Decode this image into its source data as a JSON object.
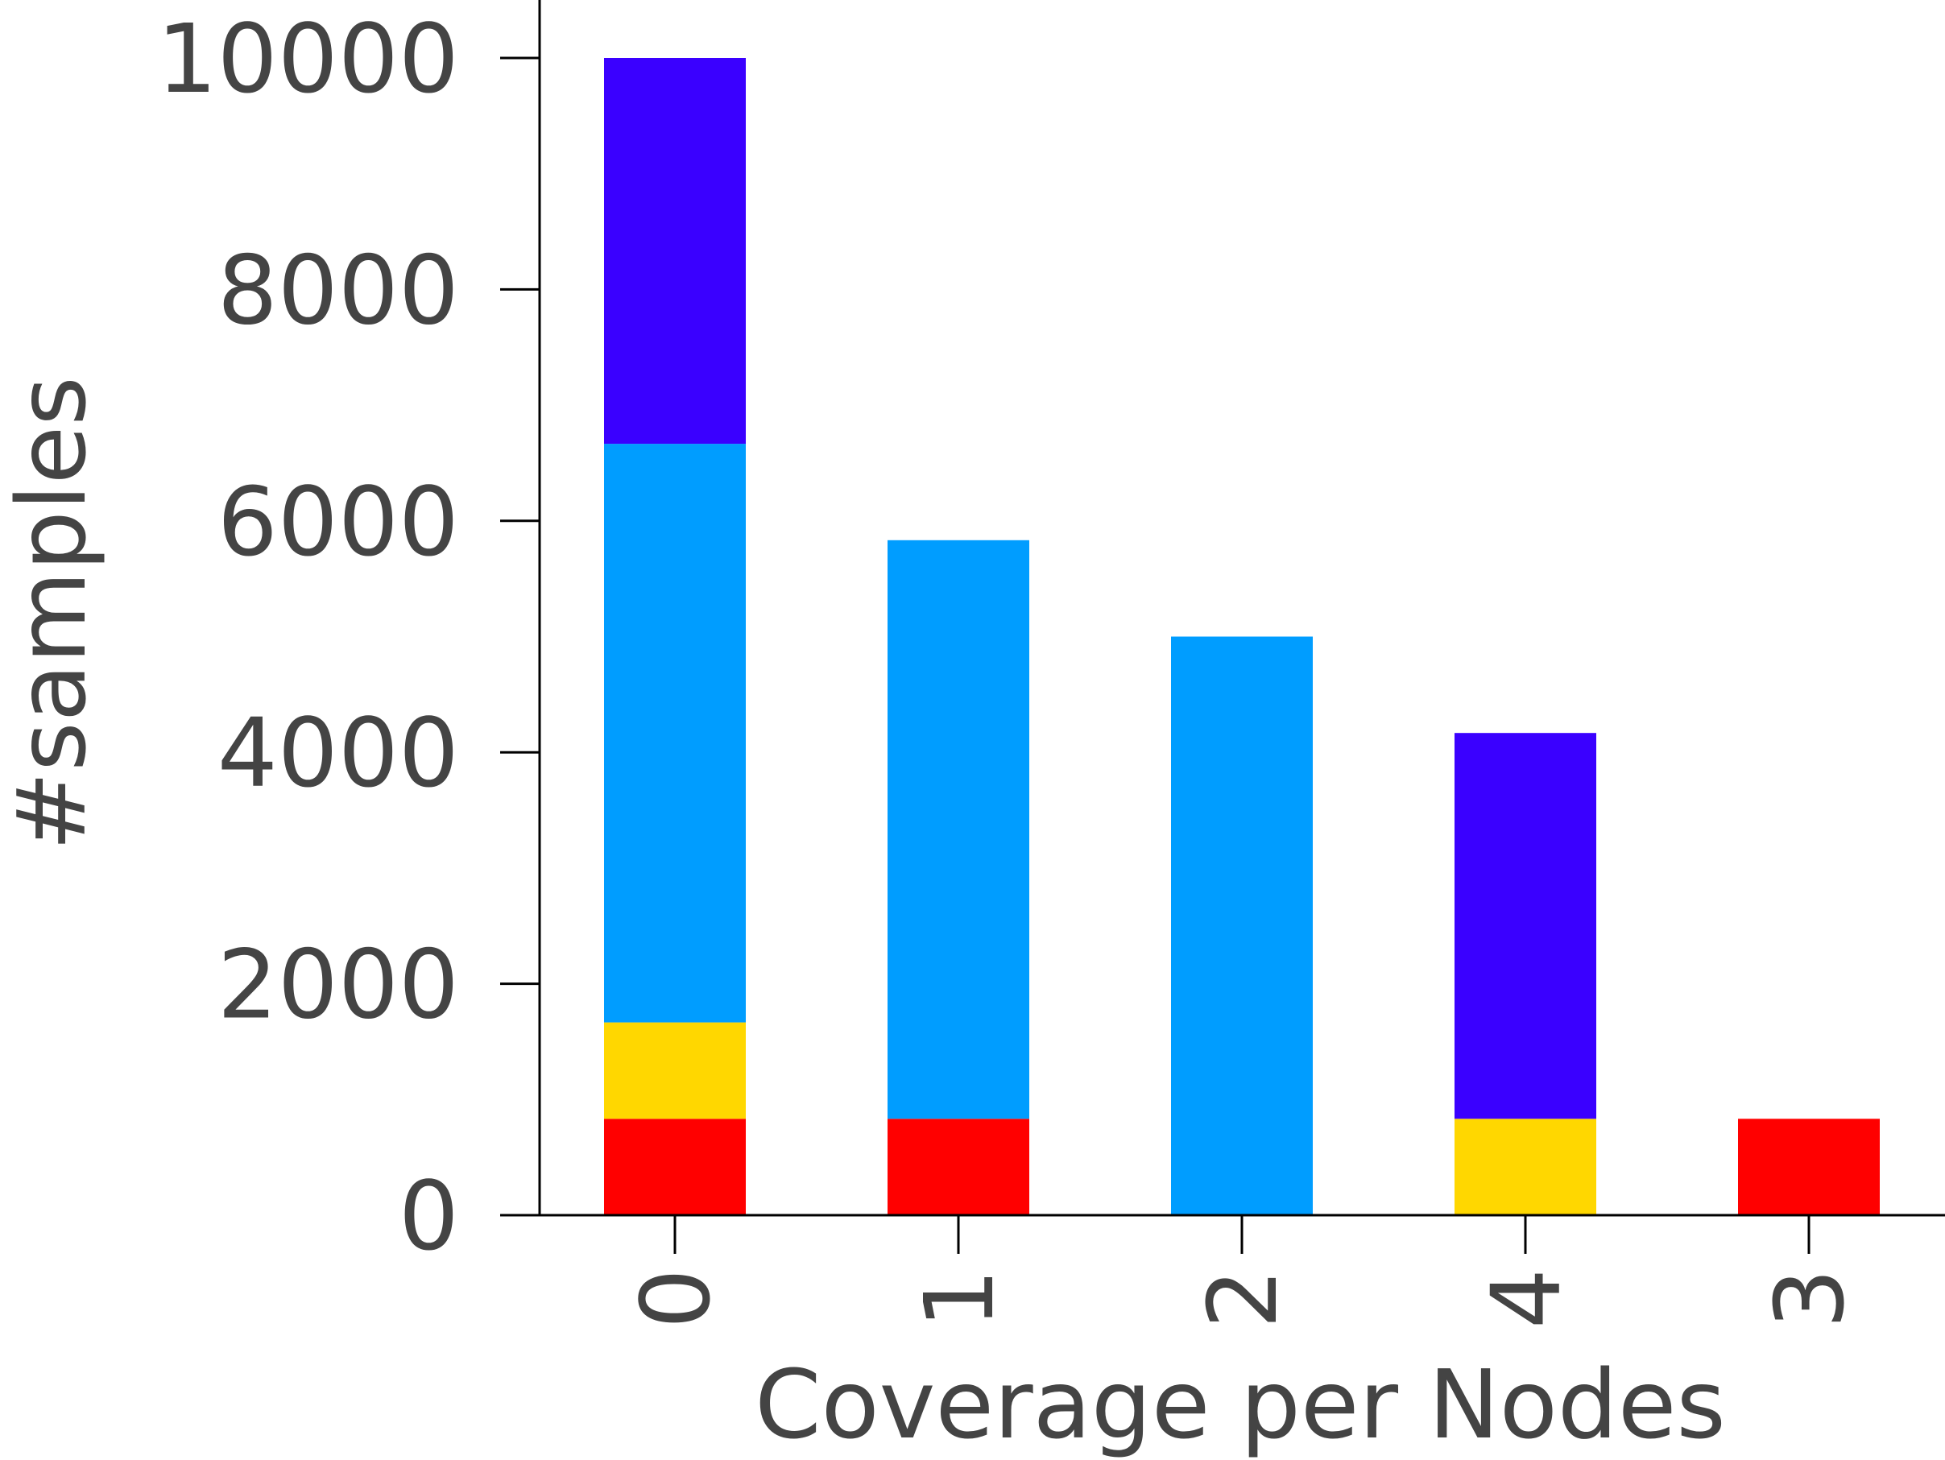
{
  "chart_data": {
    "type": "bar",
    "stacked": true,
    "title": "",
    "xlabel": "Coverage per Nodes",
    "ylabel": "#samples",
    "categories": [
      "0",
      "1",
      "2",
      "4",
      "3"
    ],
    "ylim": [
      0,
      10500
    ],
    "yticks": [
      "0",
      "2000",
      "4000",
      "6000",
      "8000",
      "10000"
    ],
    "grid": false,
    "legend": "none",
    "series": [
      {
        "color": "#ff0000",
        "values": [
          833,
          833,
          0,
          0,
          833
        ]
      },
      {
        "color": "#ffd700",
        "values": [
          833,
          0,
          0,
          833,
          0
        ]
      },
      {
        "color": "#009dff",
        "values": [
          5000,
          5000,
          5000,
          0,
          0
        ]
      },
      {
        "color": "#3a00ff",
        "values": [
          3334,
          0,
          0,
          3334,
          0
        ]
      }
    ]
  }
}
